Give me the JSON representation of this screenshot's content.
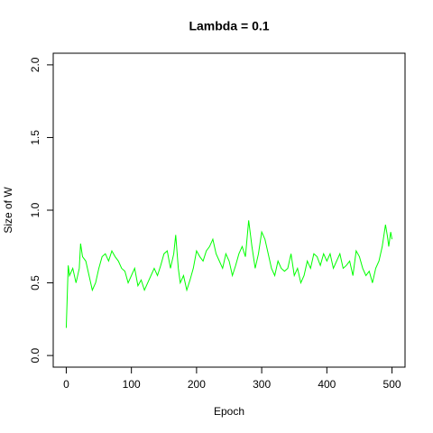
{
  "chart_data": {
    "type": "line",
    "title": "Lambda =  0.1",
    "x_label": "Epoch",
    "y_label": "Size of W",
    "x": [
      0,
      3,
      5,
      10,
      15,
      20,
      22,
      25,
      30,
      35,
      40,
      45,
      50,
      55,
      60,
      65,
      70,
      75,
      80,
      85,
      90,
      95,
      100,
      105,
      110,
      115,
      120,
      125,
      130,
      135,
      140,
      145,
      150,
      155,
      160,
      165,
      168,
      172,
      175,
      180,
      185,
      190,
      195,
      200,
      205,
      210,
      215,
      220,
      225,
      230,
      235,
      240,
      245,
      250,
      255,
      260,
      265,
      270,
      275,
      280,
      285,
      290,
      295,
      300,
      305,
      310,
      315,
      320,
      325,
      330,
      335,
      340,
      345,
      350,
      355,
      360,
      365,
      370,
      375,
      380,
      385,
      390,
      395,
      400,
      405,
      410,
      415,
      420,
      425,
      430,
      435,
      440,
      445,
      450,
      455,
      460,
      465,
      470,
      475,
      480,
      485,
      490,
      493,
      495,
      498,
      500
    ],
    "series": [
      {
        "name": "W",
        "color": "#00ff00",
        "values": [
          0.19,
          0.62,
          0.55,
          0.6,
          0.5,
          0.6,
          0.77,
          0.68,
          0.65,
          0.55,
          0.45,
          0.5,
          0.6,
          0.68,
          0.7,
          0.65,
          0.72,
          0.68,
          0.65,
          0.6,
          0.58,
          0.5,
          0.55,
          0.6,
          0.48,
          0.52,
          0.45,
          0.5,
          0.55,
          0.6,
          0.55,
          0.62,
          0.7,
          0.72,
          0.6,
          0.7,
          0.83,
          0.6,
          0.5,
          0.55,
          0.45,
          0.52,
          0.6,
          0.72,
          0.68,
          0.65,
          0.72,
          0.75,
          0.8,
          0.7,
          0.65,
          0.6,
          0.7,
          0.65,
          0.55,
          0.62,
          0.7,
          0.75,
          0.68,
          0.93,
          0.75,
          0.6,
          0.7,
          0.85,
          0.8,
          0.7,
          0.6,
          0.55,
          0.65,
          0.6,
          0.58,
          0.6,
          0.7,
          0.55,
          0.6,
          0.5,
          0.55,
          0.65,
          0.6,
          0.7,
          0.68,
          0.62,
          0.7,
          0.65,
          0.7,
          0.6,
          0.65,
          0.7,
          0.6,
          0.62,
          0.65,
          0.55,
          0.72,
          0.68,
          0.6,
          0.55,
          0.58,
          0.5,
          0.6,
          0.65,
          0.75,
          0.9,
          0.82,
          0.75,
          0.85,
          0.8
        ]
      }
    ],
    "xlim": [
      -20,
      520
    ],
    "xticks": [
      0,
      100,
      200,
      300,
      400,
      500
    ],
    "ylim": [
      -0.08,
      2.08
    ],
    "yticks": [
      {
        "value": 0,
        "label": "0.0"
      },
      0.5,
      {
        "value": 1,
        "label": "1.0"
      },
      1.5,
      {
        "value": 2,
        "label": "2.0"
      }
    ]
  }
}
